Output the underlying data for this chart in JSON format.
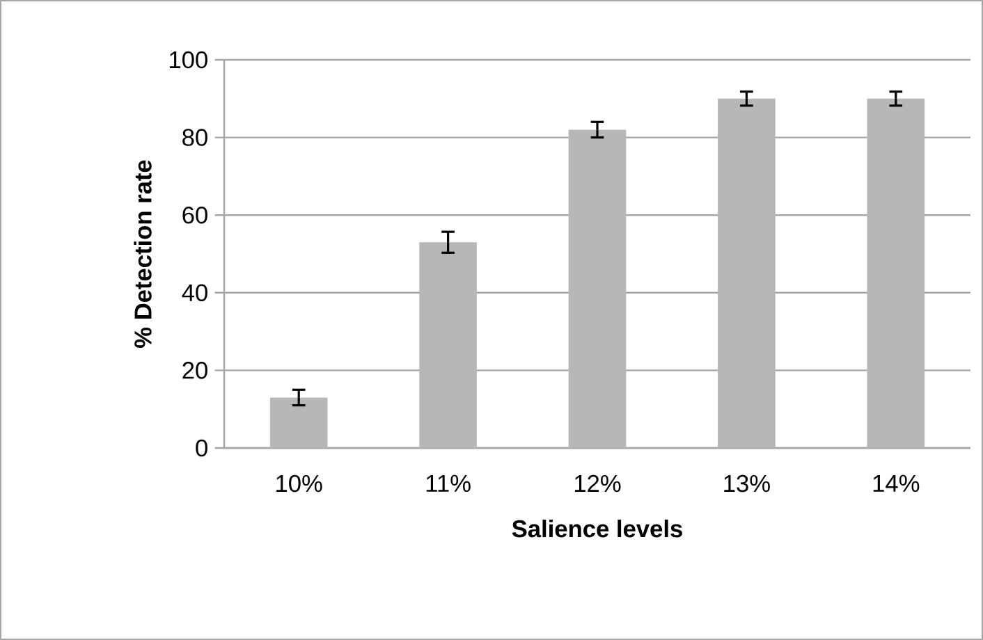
{
  "chart_data": {
    "type": "bar",
    "xlabel": "Salience levels",
    "ylabel": "%  Detection rate",
    "categories": [
      "10%",
      "11%",
      "12%",
      "13%",
      "14%"
    ],
    "values": [
      13,
      53,
      82,
      90,
      90
    ],
    "errors": [
      2,
      2.7,
      2,
      1.8,
      1.8
    ],
    "color": "#b7b7b7",
    "ylim": [
      0,
      100
    ],
    "yticks": [
      0,
      20,
      40,
      60,
      80,
      100
    ],
    "grid": "y"
  }
}
